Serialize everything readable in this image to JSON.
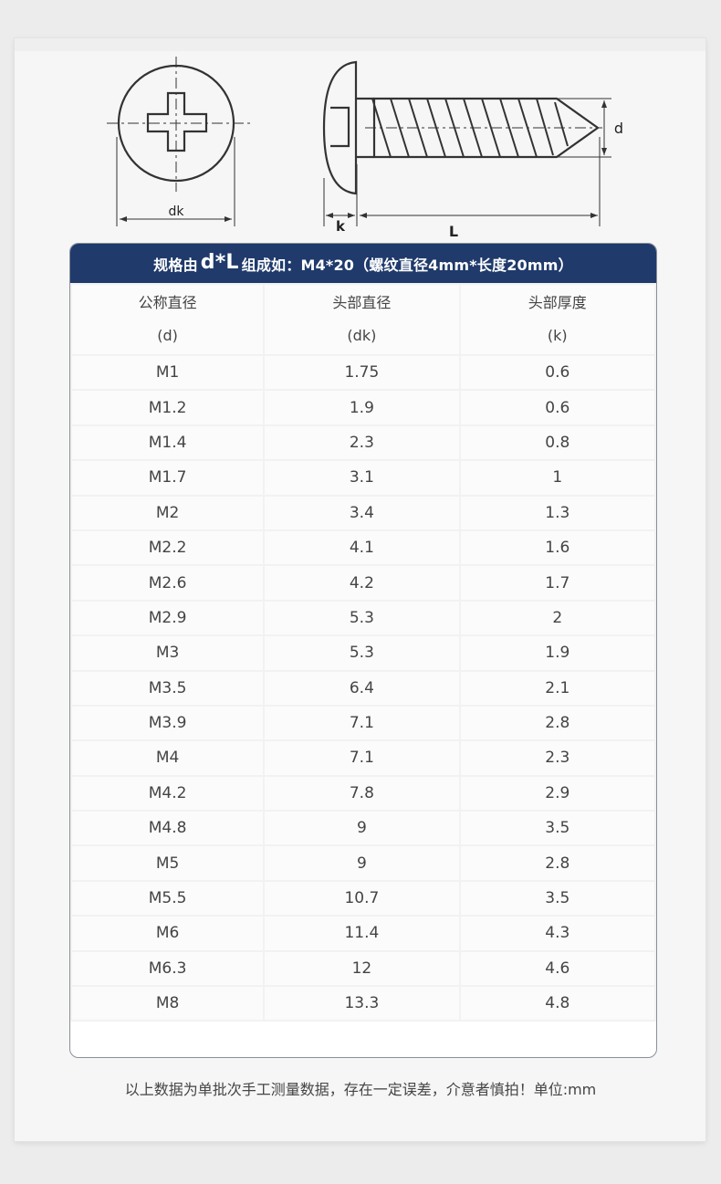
{
  "diagram": {
    "label_dk": "dk",
    "label_k": "k",
    "label_L": "L",
    "label_d": "d"
  },
  "table": {
    "title_prefix": "规格由",
    "title_formula": "d*L",
    "title_suffix": "组成如：M4*20（螺纹直径4mm*长度20mm）",
    "columns": [
      {
        "name": "公称直径",
        "sub": "(d)"
      },
      {
        "name": "头部直径",
        "sub": "(dk)"
      },
      {
        "name": "头部厚度",
        "sub": "(k)"
      }
    ],
    "rows": [
      [
        "M1",
        "1.75",
        "0.6"
      ],
      [
        "M1.2",
        "1.9",
        "0.6"
      ],
      [
        "M1.4",
        "2.3",
        "0.8"
      ],
      [
        "M1.7",
        "3.1",
        "1"
      ],
      [
        "M2",
        "3.4",
        "1.3"
      ],
      [
        "M2.2",
        "4.1",
        "1.6"
      ],
      [
        "M2.6",
        "4.2",
        "1.7"
      ],
      [
        "M2.9",
        "5.3",
        "2"
      ],
      [
        "M3",
        "5.3",
        "1.9"
      ],
      [
        "M3.5",
        "6.4",
        "2.1"
      ],
      [
        "M3.9",
        "7.1",
        "2.8"
      ],
      [
        "M4",
        "7.1",
        "2.3"
      ],
      [
        "M4.2",
        "7.8",
        "2.9"
      ],
      [
        "M4.8",
        "9",
        "3.5"
      ],
      [
        "M5",
        "9",
        "2.8"
      ],
      [
        "M5.5",
        "10.7",
        "3.5"
      ],
      [
        "M6",
        "11.4",
        "4.3"
      ],
      [
        "M6.3",
        "12",
        "4.6"
      ],
      [
        "M8",
        "13.3",
        "4.8"
      ]
    ]
  },
  "footnote": "以上数据为单批次手工测量数据，存在一定误差，介意者慎拍！单位:mm",
  "colors": {
    "header_bg": "#1f3a6b",
    "text": "#444444"
  }
}
